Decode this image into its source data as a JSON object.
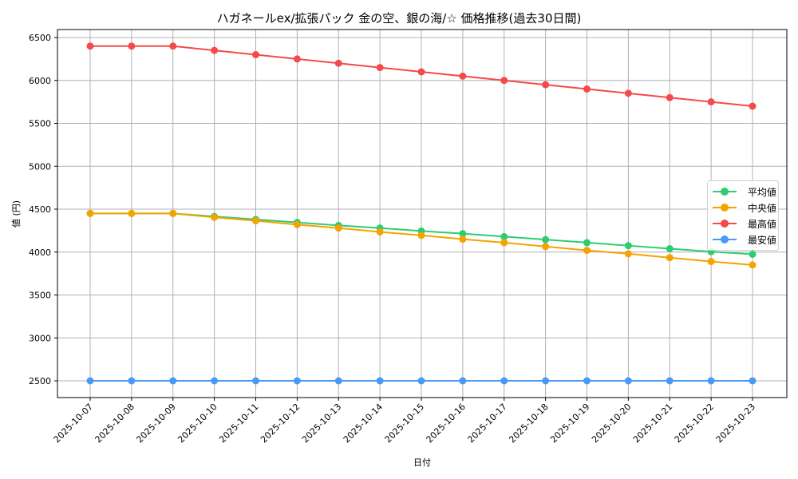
{
  "chart_data": {
    "type": "line",
    "title": "ハガネールex/拡張パック 金の空、銀の海/☆ 価格推移(過去30日間)",
    "xlabel": "日付",
    "ylabel": "値 (円)",
    "ylim": [
      2300,
      6600
    ],
    "yticks": [
      2500,
      3000,
      3500,
      4000,
      4500,
      5000,
      5500,
      6000,
      6500
    ],
    "grid": true,
    "legend_position": "center right",
    "x": [
      "2025-10-07",
      "2025-10-08",
      "2025-10-09",
      "2025-10-10",
      "2025-10-11",
      "2025-10-12",
      "2025-10-13",
      "2025-10-14",
      "2025-10-15",
      "2025-10-16",
      "2025-10-17",
      "2025-10-18",
      "2025-10-19",
      "2025-10-20",
      "2025-10-21",
      "2025-10-22",
      "2025-10-23"
    ],
    "series": [
      {
        "name": "平均値",
        "color": "#2ecc71",
        "values": [
          4450,
          4450,
          4450,
          4415,
          4380,
          4345,
          4310,
          4280,
          4245,
          4215,
          4180,
          4145,
          4110,
          4075,
          4040,
          4005,
          3975
        ]
      },
      {
        "name": "中央値",
        "color": "#f5a300",
        "values": [
          4450,
          4450,
          4450,
          4405,
          4365,
          4320,
          4280,
          4235,
          4195,
          4150,
          4110,
          4065,
          4020,
          3980,
          3935,
          3890,
          3850
        ]
      },
      {
        "name": "最高値",
        "color": "#f44a4a",
        "values": [
          6400,
          6400,
          6400,
          6350,
          6300,
          6250,
          6200,
          6150,
          6100,
          6050,
          6000,
          5950,
          5900,
          5850,
          5800,
          5750,
          5700
        ]
      },
      {
        "name": "最安値",
        "color": "#4a9af5",
        "values": [
          2500,
          2500,
          2500,
          2500,
          2500,
          2500,
          2500,
          2500,
          2500,
          2500,
          2500,
          2500,
          2500,
          2500,
          2500,
          2500,
          2500
        ]
      }
    ]
  }
}
